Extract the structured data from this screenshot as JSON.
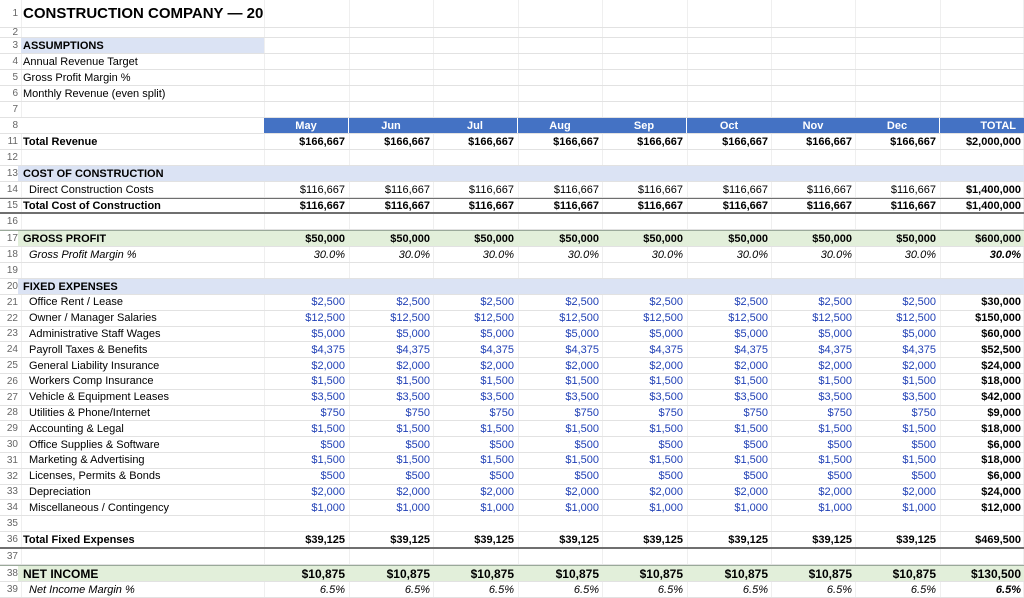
{
  "title": "CONSTRUCTION COMPANY — 20",
  "assumptions": {
    "header": "ASSUMPTIONS",
    "items": [
      "Annual Revenue Target",
      "Gross Profit Margin %",
      "Monthly Revenue (even split)"
    ]
  },
  "columns": [
    "May",
    "Jun",
    "Jul",
    "Aug",
    "Sep",
    "Oct",
    "Nov",
    "Dec",
    "TOTAL"
  ],
  "row_numbers": {
    "r1": "1",
    "r2": "2",
    "r3": "3",
    "r4": "4",
    "r5": "5",
    "r6": "6",
    "r7": "7",
    "r8": "8",
    "r11": "11",
    "r12": "12",
    "r13": "13",
    "r14": "14",
    "r15": "15",
    "r16": "16",
    "r17": "17",
    "r18": "18",
    "r19": "19",
    "r20": "20",
    "r35": "35",
    "r36": "36",
    "r37": "37",
    "r38": "38",
    "r39": "39"
  },
  "revenue": {
    "label": "Total Revenue",
    "values": [
      "$166,667",
      "$166,667",
      "$166,667",
      "$166,667",
      "$166,667",
      "$166,667",
      "$166,667",
      "$166,667",
      "$2,000,000"
    ]
  },
  "cost": {
    "header": "COST OF CONSTRUCTION",
    "direct": {
      "label": "Direct Construction Costs",
      "values": [
        "$116,667",
        "$116,667",
        "$116,667",
        "$116,667",
        "$116,667",
        "$116,667",
        "$116,667",
        "$116,667",
        "$1,400,000"
      ]
    },
    "total": {
      "label": "Total Cost of Construction",
      "values": [
        "$116,667",
        "$116,667",
        "$116,667",
        "$116,667",
        "$116,667",
        "$116,667",
        "$116,667",
        "$116,667",
        "$1,400,000"
      ]
    }
  },
  "gross_profit": {
    "label": "GROSS PROFIT",
    "values": [
      "$50,000",
      "$50,000",
      "$50,000",
      "$50,000",
      "$50,000",
      "$50,000",
      "$50,000",
      "$50,000",
      "$600,000"
    ],
    "margin_label": "Gross Profit Margin %",
    "margin_values": [
      "30.0%",
      "30.0%",
      "30.0%",
      "30.0%",
      "30.0%",
      "30.0%",
      "30.0%",
      "30.0%",
      "30.0%"
    ]
  },
  "fixed": {
    "header": "FIXED EXPENSES",
    "items": [
      {
        "num": "21",
        "label": "Office Rent / Lease",
        "values": [
          "$2,500",
          "$2,500",
          "$2,500",
          "$2,500",
          "$2,500",
          "$2,500",
          "$2,500",
          "$2,500",
          "$30,000"
        ]
      },
      {
        "num": "22",
        "label": "Owner / Manager Salaries",
        "values": [
          "$12,500",
          "$12,500",
          "$12,500",
          "$12,500",
          "$12,500",
          "$12,500",
          "$12,500",
          "$12,500",
          "$150,000"
        ]
      },
      {
        "num": "23",
        "label": "Administrative Staff Wages",
        "values": [
          "$5,000",
          "$5,000",
          "$5,000",
          "$5,000",
          "$5,000",
          "$5,000",
          "$5,000",
          "$5,000",
          "$60,000"
        ]
      },
      {
        "num": "24",
        "label": "Payroll Taxes & Benefits",
        "values": [
          "$4,375",
          "$4,375",
          "$4,375",
          "$4,375",
          "$4,375",
          "$4,375",
          "$4,375",
          "$4,375",
          "$52,500"
        ]
      },
      {
        "num": "25",
        "label": "General Liability Insurance",
        "values": [
          "$2,000",
          "$2,000",
          "$2,000",
          "$2,000",
          "$2,000",
          "$2,000",
          "$2,000",
          "$2,000",
          "$24,000"
        ]
      },
      {
        "num": "26",
        "label": "Workers Comp Insurance",
        "values": [
          "$1,500",
          "$1,500",
          "$1,500",
          "$1,500",
          "$1,500",
          "$1,500",
          "$1,500",
          "$1,500",
          "$18,000"
        ]
      },
      {
        "num": "27",
        "label": "Vehicle & Equipment Leases",
        "values": [
          "$3,500",
          "$3,500",
          "$3,500",
          "$3,500",
          "$3,500",
          "$3,500",
          "$3,500",
          "$3,500",
          "$42,000"
        ]
      },
      {
        "num": "28",
        "label": "Utilities & Phone/Internet",
        "values": [
          "$750",
          "$750",
          "$750",
          "$750",
          "$750",
          "$750",
          "$750",
          "$750",
          "$9,000"
        ]
      },
      {
        "num": "29",
        "label": "Accounting & Legal",
        "values": [
          "$1,500",
          "$1,500",
          "$1,500",
          "$1,500",
          "$1,500",
          "$1,500",
          "$1,500",
          "$1,500",
          "$18,000"
        ]
      },
      {
        "num": "30",
        "label": "Office Supplies & Software",
        "values": [
          "$500",
          "$500",
          "$500",
          "$500",
          "$500",
          "$500",
          "$500",
          "$500",
          "$6,000"
        ]
      },
      {
        "num": "31",
        "label": "Marketing & Advertising",
        "values": [
          "$1,500",
          "$1,500",
          "$1,500",
          "$1,500",
          "$1,500",
          "$1,500",
          "$1,500",
          "$1,500",
          "$18,000"
        ]
      },
      {
        "num": "32",
        "label": "Licenses, Permits & Bonds",
        "values": [
          "$500",
          "$500",
          "$500",
          "$500",
          "$500",
          "$500",
          "$500",
          "$500",
          "$6,000"
        ]
      },
      {
        "num": "33",
        "label": "Depreciation",
        "values": [
          "$2,000",
          "$2,000",
          "$2,000",
          "$2,000",
          "$2,000",
          "$2,000",
          "$2,000",
          "$2,000",
          "$24,000"
        ]
      },
      {
        "num": "34",
        "label": "Miscellaneous / Contingency",
        "values": [
          "$1,000",
          "$1,000",
          "$1,000",
          "$1,000",
          "$1,000",
          "$1,000",
          "$1,000",
          "$1,000",
          "$12,000"
        ]
      }
    ],
    "total": {
      "label": "Total Fixed Expenses",
      "values": [
        "$39,125",
        "$39,125",
        "$39,125",
        "$39,125",
        "$39,125",
        "$39,125",
        "$39,125",
        "$39,125",
        "$469,500"
      ]
    }
  },
  "net_income": {
    "label": "NET INCOME",
    "values": [
      "$10,875",
      "$10,875",
      "$10,875",
      "$10,875",
      "$10,875",
      "$10,875",
      "$10,875",
      "$10,875",
      "$130,500"
    ],
    "margin_label": "Net Income Margin %",
    "margin_values": [
      "6.5%",
      "6.5%",
      "6.5%",
      "6.5%",
      "6.5%",
      "6.5%",
      "6.5%",
      "6.5%",
      "6.5%"
    ]
  },
  "colors": {
    "header_blue": "#4472c4",
    "section_band": "#dbe3f4",
    "green_band": "#e2efda",
    "input_blue": "#1f3fb5"
  }
}
